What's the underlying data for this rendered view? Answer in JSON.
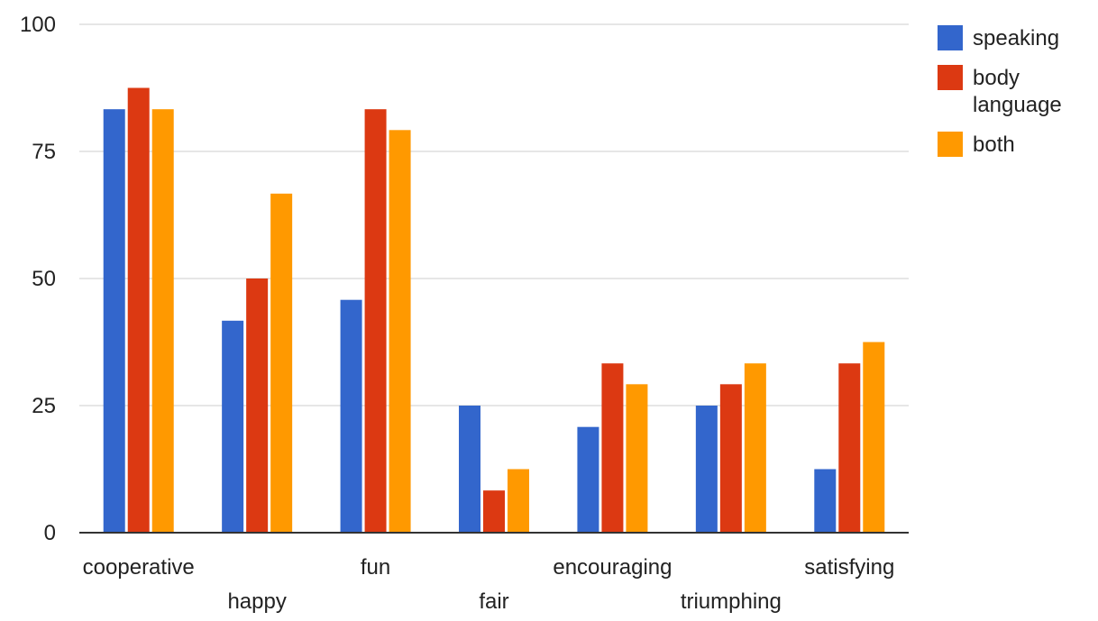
{
  "chart_data": {
    "type": "bar",
    "title": "",
    "xlabel": "",
    "ylabel": "",
    "ylim": [
      0,
      100
    ],
    "yticks": [
      0,
      25,
      50,
      75,
      100
    ],
    "grid": true,
    "legend_position": "right",
    "categories": [
      "cooperative",
      "happy",
      "fun",
      "fair",
      "encouraging",
      "triumphing",
      "satisfying"
    ],
    "series": [
      {
        "name": "speaking",
        "color": "#3366cc",
        "values": [
          83.3,
          41.7,
          45.8,
          25.0,
          20.8,
          25.0,
          12.5
        ]
      },
      {
        "name": "body language",
        "color": "#dc3912",
        "values": [
          87.5,
          50.0,
          83.3,
          8.3,
          33.3,
          29.2,
          33.3
        ]
      },
      {
        "name": "both",
        "color": "#ff9900",
        "values": [
          83.3,
          66.7,
          79.2,
          12.5,
          29.2,
          33.3,
          37.5
        ]
      }
    ]
  },
  "legend": {
    "items": [
      {
        "label_lines": [
          "speaking"
        ],
        "color": "#3366cc"
      },
      {
        "label_lines": [
          "body",
          "language"
        ],
        "color": "#dc3912"
      },
      {
        "label_lines": [
          "both"
        ],
        "color": "#ff9900"
      }
    ]
  }
}
